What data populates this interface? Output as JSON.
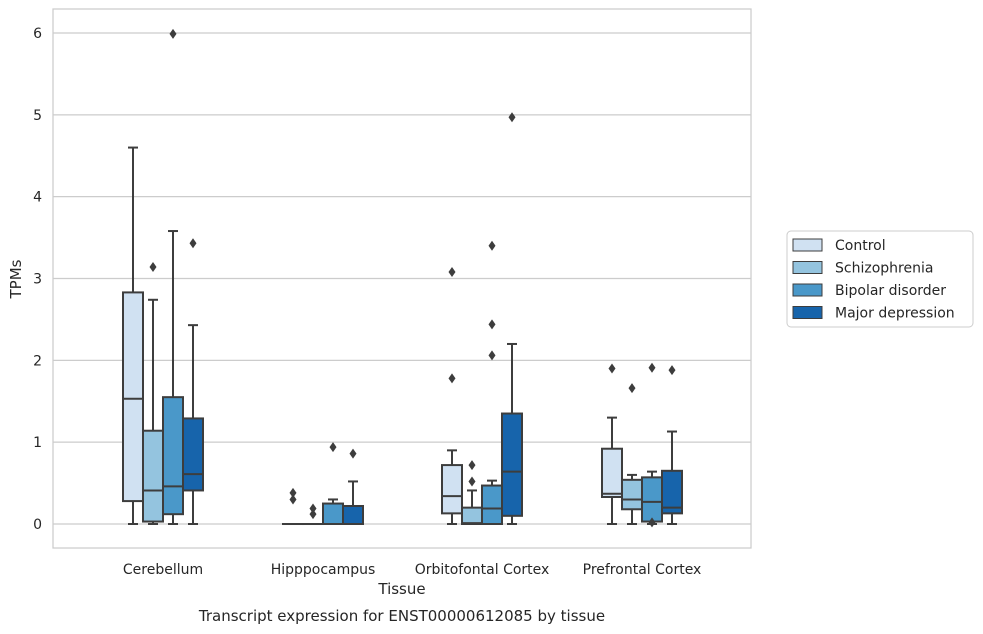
{
  "chart_data": {
    "type": "box",
    "xlabel": "Tissue",
    "ylabel": "TPMs",
    "caption": "Transcript expression for ENST00000612085 by tissue",
    "ylim": [
      -0.3,
      6.3
    ],
    "yticks": [
      0,
      1,
      2,
      3,
      4,
      5,
      6
    ],
    "grid": "horizontal",
    "legend_position": "right",
    "categories": [
      "Cerebellum",
      "Hipppocampus",
      "Orbitofontal Cortex",
      "Prefrontal Cortex"
    ],
    "series": [
      {
        "name": "Control",
        "color": "#d0e1f2",
        "boxes": [
          {
            "min": 0,
            "q1": 0.28,
            "median": 1.53,
            "q3": 2.83,
            "max": 4.6,
            "outliers": []
          },
          {
            "min": 0,
            "q1": 0,
            "median": 0,
            "q3": 0,
            "max": 0,
            "outliers": [
              0.3,
              0.38
            ]
          },
          {
            "min": 0,
            "q1": 0.13,
            "median": 0.34,
            "q3": 0.72,
            "max": 0.9,
            "outliers": [
              1.78,
              3.08
            ]
          },
          {
            "min": 0,
            "q1": 0.33,
            "median": 0.37,
            "q3": 0.92,
            "max": 1.3,
            "outliers": [
              1.9
            ]
          }
        ]
      },
      {
        "name": "Schizophrenia",
        "color": "#94c4df",
        "boxes": [
          {
            "min": 0,
            "q1": 0.03,
            "median": 0.41,
            "q3": 1.14,
            "max": 2.74,
            "outliers": [
              3.14
            ]
          },
          {
            "min": 0,
            "q1": 0,
            "median": 0,
            "q3": 0,
            "max": 0,
            "outliers": [
              0.12,
              0.19
            ]
          },
          {
            "min": 0,
            "q1": 0,
            "median": 0.01,
            "q3": 0.2,
            "max": 0.41,
            "outliers": [
              0.52,
              0.72
            ]
          },
          {
            "min": 0,
            "q1": 0.18,
            "median": 0.3,
            "q3": 0.54,
            "max": 0.6,
            "outliers": [
              1.66
            ]
          }
        ]
      },
      {
        "name": "Bipolar disorder",
        "color": "#4a98c9",
        "boxes": [
          {
            "min": 0,
            "q1": 0.12,
            "median": 0.46,
            "q3": 1.55,
            "max": 3.58,
            "outliers": [
              5.99
            ]
          },
          {
            "min": 0,
            "q1": 0,
            "median": 0,
            "q3": 0.25,
            "max": 0.3,
            "outliers": [
              0.94
            ]
          },
          {
            "min": 0,
            "q1": 0,
            "median": 0.19,
            "q3": 0.47,
            "max": 0.53,
            "outliers": [
              2.06,
              2.44,
              3.4
            ]
          },
          {
            "min": 0,
            "q1": 0.03,
            "median": 0.27,
            "q3": 0.57,
            "max": 0.64,
            "outliers": [
              0.02,
              1.91
            ]
          }
        ]
      },
      {
        "name": "Major depression",
        "color": "#1764ab",
        "boxes": [
          {
            "min": 0,
            "q1": 0.41,
            "median": 0.61,
            "q3": 1.29,
            "max": 2.43,
            "outliers": [
              3.43
            ]
          },
          {
            "min": 0,
            "q1": 0,
            "median": 0,
            "q3": 0.22,
            "max": 0.52,
            "outliers": [
              0.86
            ]
          },
          {
            "min": 0,
            "q1": 0.1,
            "median": 0.64,
            "q3": 1.35,
            "max": 2.2,
            "outliers": [
              4.97
            ]
          },
          {
            "min": 0,
            "q1": 0.13,
            "median": 0.2,
            "q3": 0.65,
            "max": 1.13,
            "outliers": [
              1.88
            ]
          }
        ]
      }
    ]
  }
}
